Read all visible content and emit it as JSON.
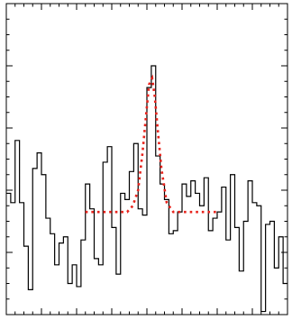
{
  "chart_data": {
    "type": "line",
    "title": "",
    "xlabel": "",
    "ylabel": "",
    "xlim": [
      0,
      64
    ],
    "ylim": [
      0,
      10
    ],
    "grid": false,
    "legend": "none",
    "colors": {
      "frame": "#000000",
      "histogram": "#000000",
      "fit": "#e8231c"
    },
    "series": [
      {
        "style": "step",
        "x": [
          0,
          1,
          2,
          3,
          4,
          5,
          6,
          7,
          8,
          9,
          10,
          11,
          12,
          13,
          14,
          15,
          16,
          17,
          18,
          19,
          20,
          21,
          22,
          23,
          24,
          25,
          26,
          27,
          28,
          29,
          30,
          31,
          32,
          33,
          34,
          35,
          36,
          37,
          38,
          39,
          40,
          41,
          42,
          43,
          44,
          45,
          46,
          47,
          48,
          49,
          50,
          51,
          52,
          53,
          54,
          55,
          56,
          57,
          58,
          59,
          60,
          61,
          62,
          63,
          64
        ],
        "y": [
          3.9,
          3.6,
          5.6,
          3.6,
          2.2,
          0.8,
          4.7,
          5.2,
          4.5,
          3.1,
          2.6,
          1.6,
          2.3,
          2.5,
          1.0,
          1.6,
          0.9,
          2.4,
          4.2,
          3.4,
          1.8,
          1.6,
          4.9,
          5.4,
          2.8,
          1.3,
          3.9,
          3.7,
          4.6,
          5.5,
          3.4,
          3.2,
          7.3,
          8.0,
          5.1,
          4.2,
          3.7,
          2.6,
          2.7,
          3.3,
          4.2,
          3.8,
          4.3,
          3.9,
          3.5,
          4.4,
          2.7,
          3.1,
          3.3,
          4.1,
          2.4,
          4.5,
          2.8,
          1.4,
          3.0,
          4.3,
          3.6,
          3.5,
          0.1,
          2.9,
          3.0,
          1.5,
          2.5,
          1.0,
          1.0
        ]
      },
      {
        "style": "dotted",
        "x": [
          18.0,
          27.5,
          28.8,
          30.0,
          31.0,
          31.8,
          32.5,
          33.2,
          33.8,
          34.5,
          35.3,
          36.5,
          38.0,
          40.0,
          48.0
        ],
        "y": [
          3.3,
          3.3,
          3.5,
          4.0,
          5.2,
          6.4,
          7.4,
          7.6,
          7.0,
          5.9,
          4.7,
          3.6,
          3.3,
          3.3,
          3.3
        ]
      }
    ],
    "xticks": {
      "major": [
        0,
        8,
        16,
        24,
        32,
        40,
        48,
        56,
        64
      ],
      "minor_step": 2
    },
    "yticks": {
      "major": [
        0,
        2,
        4,
        6,
        8,
        10
      ],
      "minor_step": 0.5
    }
  }
}
